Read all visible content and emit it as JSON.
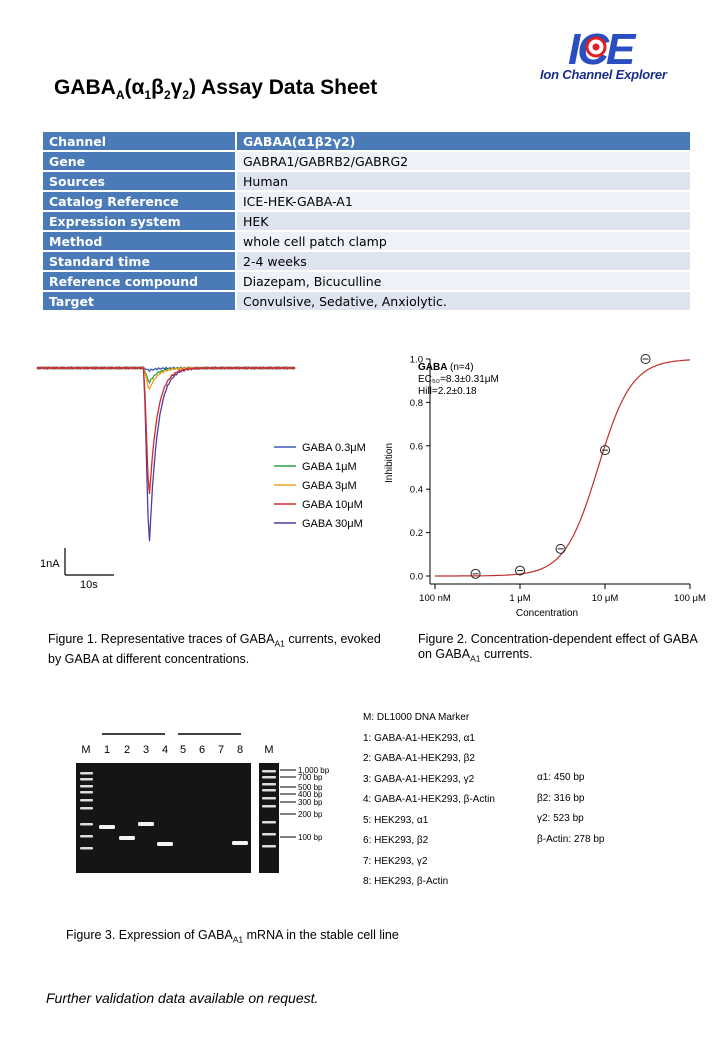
{
  "logo": {
    "mark": "ICE",
    "name": "Ion Channel Explorer"
  },
  "title": {
    "prefix": "GABA",
    "sub1": "A",
    "formula_open": "(α",
    "s1": "1",
    "beta": "β",
    "s2": "2",
    "gamma": "γ",
    "s3": "2",
    "suffix": ") Assay Data Sheet"
  },
  "info_table": {
    "rows": [
      {
        "key": "Channel",
        "value": "GABAA(α1β2γ2)"
      },
      {
        "key": "Gene",
        "value": "GABRA1/GABRB2/GABRG2"
      },
      {
        "key": "Sources",
        "value": "Human"
      },
      {
        "key": "Catalog Reference",
        "value": "ICE-HEK-GABA-A1"
      },
      {
        "key": "Expression system",
        "value": "HEK"
      },
      {
        "key": "Method",
        "value": "whole cell patch clamp"
      },
      {
        "key": "Standard time",
        "value": "2-4 weeks"
      },
      {
        "key": "Reference compound",
        "value": "Diazepam, Bicuculline"
      },
      {
        "key": "Target",
        "value": "Convulsive, Sedative, Anxiolytic."
      }
    ]
  },
  "figure1": {
    "legend": [
      "GABA 0.3μM",
      "GABA 1μM",
      "GABA 3μM",
      "GABA 10μM",
      "GABA 30μM"
    ],
    "colors": [
      "#3b5bb5",
      "#2ea043",
      "#f0a020",
      "#d42a2a",
      "#4b3fa0"
    ],
    "peaks": [
      0.01,
      0.06,
      0.09,
      0.54,
      0.74
    ],
    "scale_y": "1nA",
    "scale_x": "10s",
    "caption_a": "Figure 1. Representative traces of GABA",
    "caption_sub": "A1",
    "caption_b": " currents, evoked by GABA at different concentrations."
  },
  "chart_data": {
    "type": "scatter",
    "xlabel": "Concentration",
    "ylabel": "Inhibition",
    "xscale": "log",
    "xlim_uM": [
      0.1,
      100
    ],
    "ylim": [
      0,
      1.0
    ],
    "x_ticks": [
      "100 nM",
      "1 μM",
      "10 μM",
      "100 μM"
    ],
    "y_ticks": [
      "0.0",
      "0.2",
      "0.4",
      "0.6",
      "0.8",
      "1.0"
    ],
    "x": [
      0.3,
      1,
      3,
      10,
      30
    ],
    "y": [
      0.01,
      0.025,
      0.125,
      0.58,
      1.0
    ],
    "fit": {
      "ec50_uM": 8.3,
      "hill": 2.2
    },
    "annotation": {
      "name": "GABA",
      "n": "(n=4)",
      "ec50": "EC₅₀=8.3±0.31μM",
      "hill": "Hill=2.2±0.18"
    },
    "curve_color": "#c0302a"
  },
  "figure2": {
    "caption_a": "Figure 2. Concentration-dependent effect of GABA on GABA",
    "caption_sub": "A1",
    "caption_b": " currents."
  },
  "figure3": {
    "lane_labels": [
      "M",
      "1",
      "2",
      "3",
      "4",
      "5",
      "6",
      "7",
      "8",
      "M"
    ],
    "marker_sizes": [
      "1,000 bp",
      "700 bp",
      "500 bp",
      "400 bp",
      "300 bp",
      "200 bp",
      "100 bp"
    ],
    "legend": [
      "M: DL1000 DNA Marker",
      "1: GABA-A1-HEK293, α1",
      "2: GABA-A1-HEK293, β2",
      "3: GABA-A1-HEK293, γ2",
      "4: GABA-A1-HEK293, β-Actin",
      "5: HEK293, α1",
      "6: HEK293, β2",
      "7: HEK293, γ2",
      "8: HEK293, β-Actin"
    ],
    "sizes": [
      "α1: 450 bp",
      "β2: 316 bp",
      "γ2: 523 bp",
      "β-Actin: 278 bp"
    ],
    "caption_a": "Figure 3. Expression of GABA",
    "caption_sub": "A1",
    "caption_b": " mRNA in the stable cell line"
  },
  "footnote": "Further validation data available on request."
}
